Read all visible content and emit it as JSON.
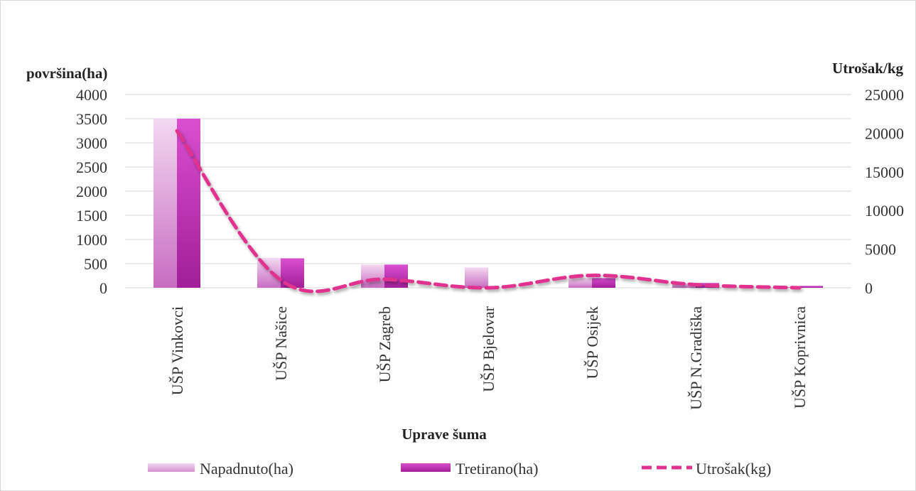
{
  "chart_data": {
    "type": "bar",
    "title": "",
    "xlabel": "Uprave šuma",
    "ylabel": "površina(ha)",
    "y2label": "Utrošak/kg",
    "ylim": [
      0,
      4000
    ],
    "y2lim": [
      0,
      25000
    ],
    "yticks": [
      "4000",
      "3500",
      "3000",
      "2500",
      "2000",
      "1500",
      "1000",
      "500",
      "0"
    ],
    "y2ticks": [
      "25000",
      "20000",
      "15000",
      "10000",
      "5000",
      "0"
    ],
    "categories": [
      "UŠP Vinkovci",
      "UŠP Našice",
      "UŠP Zagreb",
      "UŠP Bjelovar",
      "UŠP Osijek",
      "UŠP N.Gradiška",
      "UŠP Koprivnica"
    ],
    "series": [
      {
        "name": "Napadnuto(ha)",
        "type": "bar",
        "axis": "left",
        "color": "#e9b9e6",
        "values": [
          3500,
          620,
          480,
          420,
          200,
          100,
          20
        ]
      },
      {
        "name": "Tretirano(ha)",
        "type": "bar",
        "axis": "left",
        "color": "#c23bb8",
        "values": [
          3500,
          610,
          480,
          0,
          200,
          100,
          40
        ]
      },
      {
        "name": "Utrošak(kg)",
        "type": "line",
        "style": "dashed",
        "axis": "right",
        "color": "#e0328e",
        "values": [
          20300,
          1000,
          1100,
          0,
          1600,
          400,
          0
        ]
      }
    ],
    "grid": true,
    "legend": "bottom"
  }
}
